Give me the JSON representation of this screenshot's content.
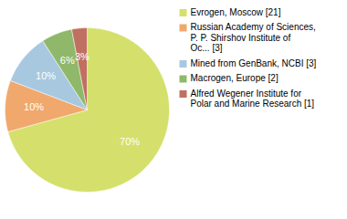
{
  "chart_data": {
    "type": "pie",
    "categories": [
      "Evrogen, Moscow [21]",
      "Russian Academy of Sciences,\nP. P. Shirshov Institute of\nOc... [3]",
      "Mined from GenBank, NCBI [3]",
      "Macrogen, Europe [2]",
      "Alfred Wegener Institute for\nPolar and Marine Research [1]"
    ],
    "values": [
      70,
      10,
      10,
      6,
      3
    ],
    "value_labels": [
      "70%",
      "10%",
      "10%",
      "6%",
      "3%"
    ],
    "colors": [
      "#d4e06b",
      "#f0a86c",
      "#a8c8e0",
      "#90b86a",
      "#c07060"
    ],
    "data_labels": true,
    "legend": "right"
  }
}
